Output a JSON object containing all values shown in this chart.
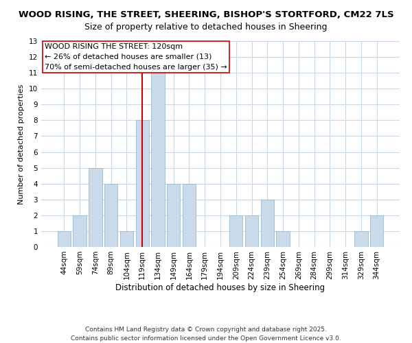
{
  "title1": "WOOD RISING, THE STREET, SHEERING, BISHOP'S STORTFORD, CM22 7LS",
  "title2": "Size of property relative to detached houses in Sheering",
  "xlabel": "Distribution of detached houses by size in Sheering",
  "ylabel": "Number of detached properties",
  "bin_labels": [
    "44sqm",
    "59sqm",
    "74sqm",
    "89sqm",
    "104sqm",
    "119sqm",
    "134sqm",
    "149sqm",
    "164sqm",
    "179sqm",
    "194sqm",
    "209sqm",
    "224sqm",
    "239sqm",
    "254sqm",
    "269sqm",
    "284sqm",
    "299sqm",
    "314sqm",
    "329sqm",
    "344sqm"
  ],
  "bar_values": [
    1,
    2,
    5,
    4,
    1,
    8,
    11,
    4,
    4,
    0,
    0,
    2,
    2,
    3,
    1,
    0,
    0,
    0,
    0,
    1,
    2
  ],
  "bar_color": "#c9daea",
  "bar_edgecolor": "#9bb8cc",
  "vline_x_index": 5,
  "vline_color": "#cc0000",
  "ylim": [
    0,
    13
  ],
  "yticks": [
    0,
    1,
    2,
    3,
    4,
    5,
    6,
    7,
    8,
    9,
    10,
    11,
    12,
    13
  ],
  "annotation_title": "WOOD RISING THE STREET: 120sqm",
  "annotation_line1": "← 26% of detached houses are smaller (13)",
  "annotation_line2": "70% of semi-detached houses are larger (35) →",
  "footer1": "Contains HM Land Registry data © Crown copyright and database right 2025.",
  "footer2": "Contains public sector information licensed under the Open Government Licence v3.0.",
  "bg_color": "#ffffff",
  "plot_bg_color": "#ffffff",
  "grid_color": "#c8d8e8",
  "title1_fontsize": 9.5,
  "title2_fontsize": 9,
  "xlabel_fontsize": 8.5,
  "ylabel_fontsize": 8,
  "tick_fontsize": 7.5,
  "annotation_fontsize": 8,
  "footer_fontsize": 6.5
}
